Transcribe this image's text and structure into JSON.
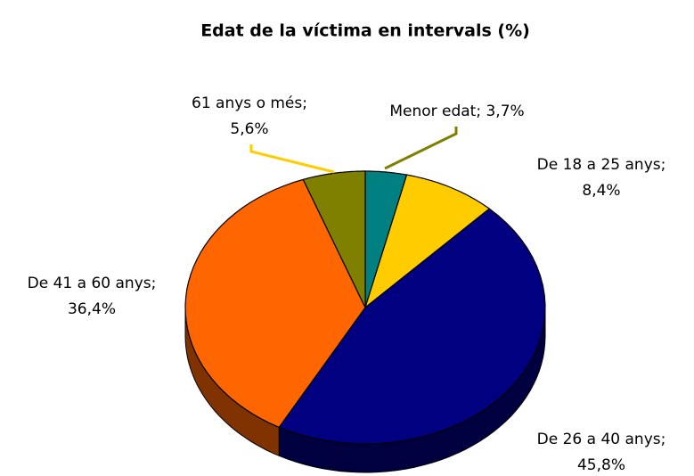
{
  "chart_data": {
    "type": "pie3d",
    "title": "Edat  de la víctima en intervals (%)",
    "values": [
      3.7,
      8.4,
      45.8,
      36.4,
      5.6
    ],
    "value_labels": [
      [
        "Menor edat; 3,7%"
      ],
      [
        "De 18 a 25 anys;",
        "8,4%"
      ],
      [
        "De 26 a 40 anys;",
        "45,8%"
      ],
      [
        "De 41 a 60 anys;",
        "36,4%"
      ],
      [
        "61 anys o més;",
        "5,6%"
      ]
    ],
    "colors": [
      "#008080",
      "#ffcc00",
      "#000080",
      "#ff6600",
      "#808000"
    ]
  }
}
